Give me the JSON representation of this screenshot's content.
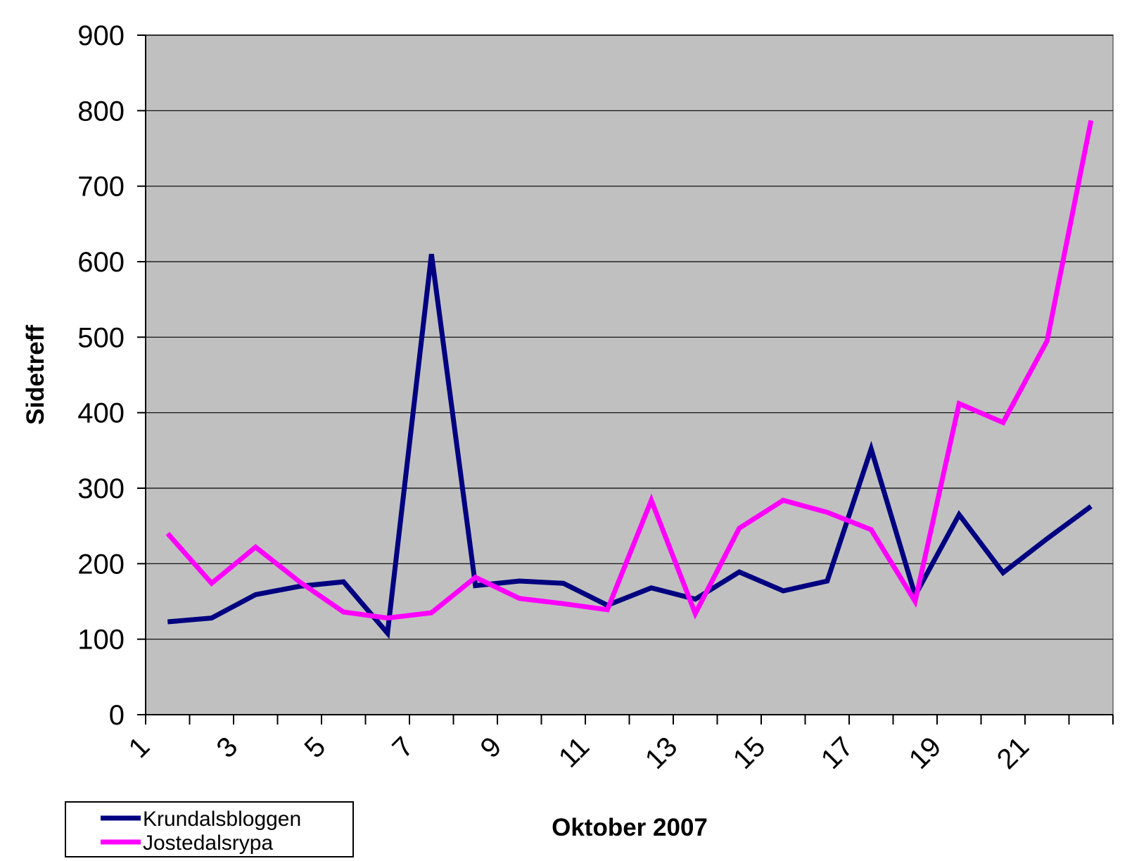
{
  "chart_data": {
    "type": "line",
    "xlabel": "Oktober 2007",
    "ylabel": "Sidetreff",
    "ylim": [
      0,
      900
    ],
    "yticks": [
      "0",
      "100",
      "200",
      "300",
      "400",
      "500",
      "600",
      "700",
      "800",
      "900"
    ],
    "x": [
      1,
      2,
      3,
      4,
      5,
      6,
      7,
      8,
      9,
      10,
      11,
      12,
      13,
      14,
      15,
      16,
      17,
      18,
      19,
      20,
      21,
      22
    ],
    "xtick_labels": [
      "1",
      "3",
      "5",
      "7",
      "9",
      "11",
      "13",
      "15",
      "17",
      "19",
      "21"
    ],
    "xtick_label_indices": [
      0,
      2,
      4,
      6,
      8,
      10,
      12,
      14,
      16,
      18,
      20
    ],
    "grid": true,
    "plot_background": "#c0c0c0",
    "legend_position": "bottom-left",
    "series": [
      {
        "name": "Krundalsbloggen",
        "color": "#000080",
        "values": [
          123,
          128,
          159,
          170,
          176,
          108,
          610,
          171,
          177,
          174,
          145,
          168,
          153,
          189,
          164,
          177,
          352,
          158,
          265,
          188,
          233,
          276
        ]
      },
      {
        "name": "Jostedalsrypa",
        "color": "#ff00ff",
        "values": [
          240,
          174,
          222,
          176,
          136,
          128,
          135,
          182,
          154,
          147,
          139,
          284,
          134,
          247,
          284,
          268,
          245,
          150,
          412,
          387,
          495,
          787
        ]
      }
    ]
  }
}
